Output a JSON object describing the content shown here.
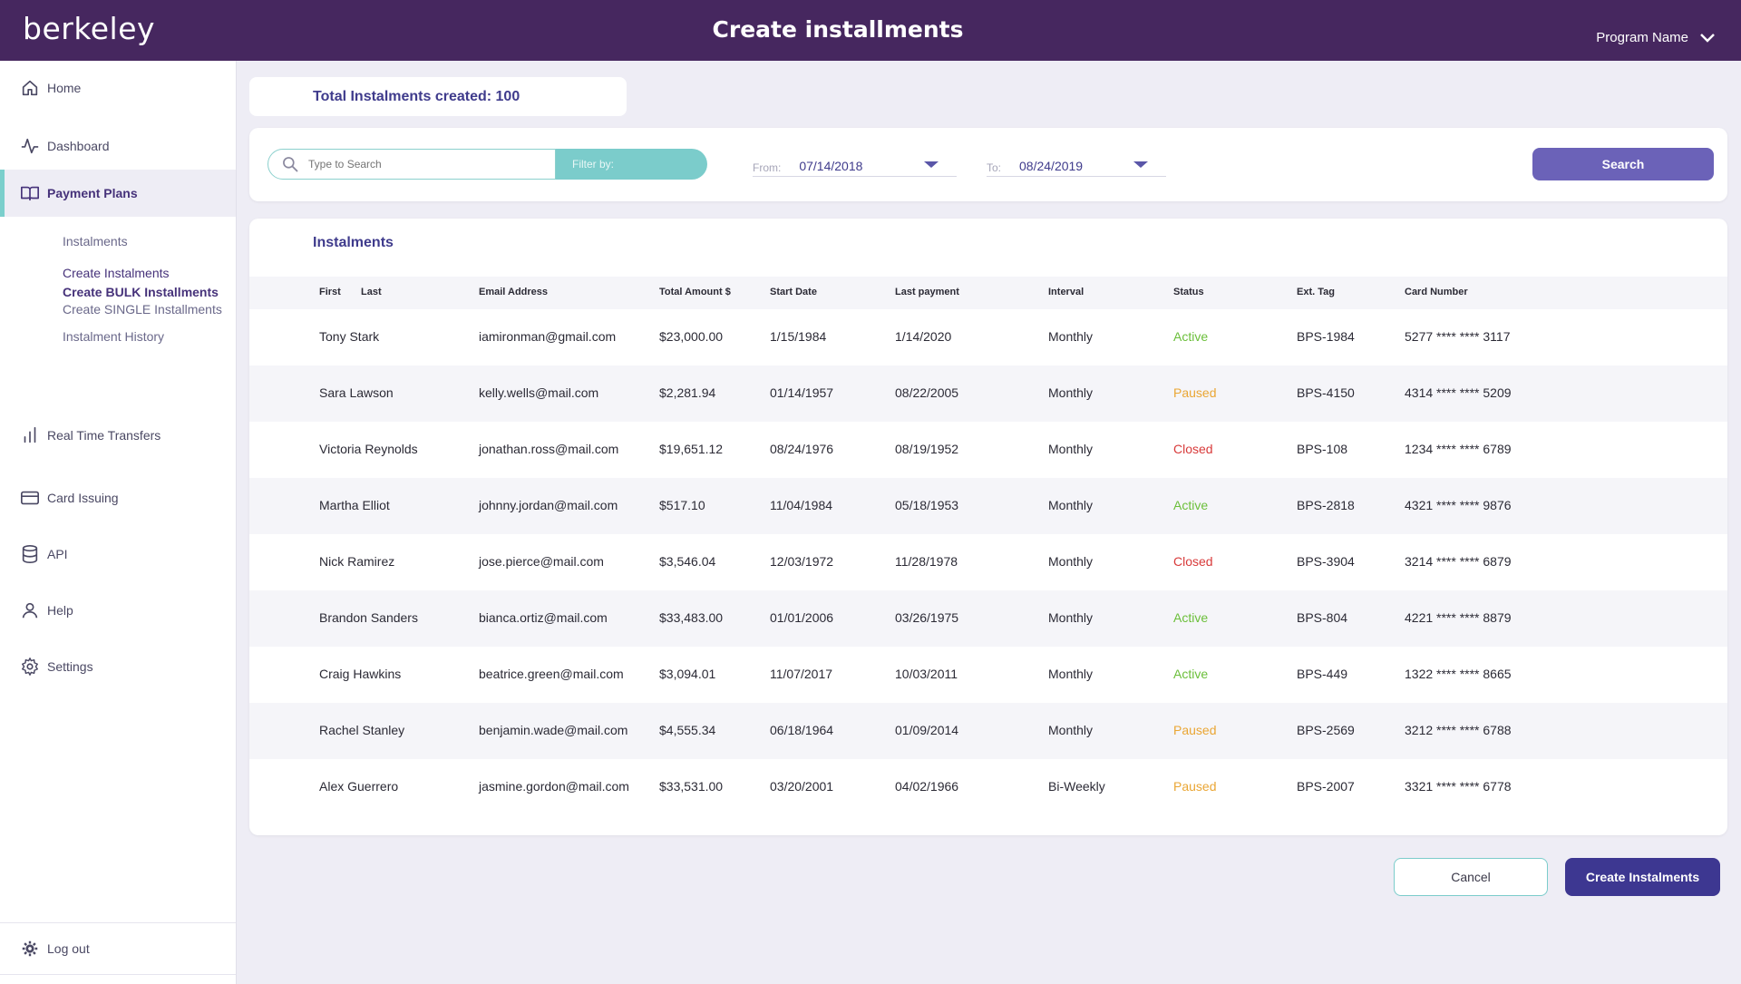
{
  "header": {
    "logo": "berkeley",
    "title": "Create installments",
    "program_label": "Program Name"
  },
  "sidebar": {
    "home": "Home",
    "dashboard": "Dashboard",
    "payment_plans": "Payment Plans",
    "sub": {
      "instalments": "Instalments",
      "create_instalments": "Create Instalments",
      "create_bulk": "Create BULK Installments",
      "create_single": "Create SINGLE Installments",
      "history": "Instalment History"
    },
    "real_time_transfers": "Real Time Transfers",
    "card_issuing": "Card Issuing",
    "api": "API",
    "help": "Help",
    "settings": "Settings",
    "logout": "Log out"
  },
  "summary": {
    "total_label": "Total Instalments created: 100"
  },
  "search": {
    "placeholder": "Type to Search",
    "filter_label": "Filter by:",
    "from_label": "From:",
    "from_value": "07/14/2018",
    "to_label": "To:",
    "to_value": "08/24/2019",
    "button": "Search"
  },
  "table": {
    "title": "Instalments",
    "headers": {
      "first": "First",
      "last": "Last",
      "email": "Email Address",
      "amount": "Total Amount $",
      "start": "Start Date",
      "last_payment": "Last payment",
      "interval": "Interval",
      "status": "Status",
      "tag": "Ext. Tag",
      "card": "Card Number"
    },
    "rows": [
      {
        "name": "Tony Stark",
        "email": "iamironman@gmail.com",
        "amount": "$23,000.00",
        "start": "1/15/1984",
        "last_payment": "1/14/2020",
        "interval": "Monthly",
        "status": "Active",
        "tag": "BPS-1984",
        "card": "5277 **** **** 3117"
      },
      {
        "name": "Sara Lawson",
        "email": "kelly.wells@mail.com",
        "amount": "$2,281.94",
        "start": "01/14/1957",
        "last_payment": "08/22/2005",
        "interval": "Monthly",
        "status": "Paused",
        "tag": "BPS-4150",
        "card": "4314 **** **** 5209"
      },
      {
        "name": "Victoria Reynolds",
        "email": "jonathan.ross@mail.com",
        "amount": "$19,651.12",
        "start": "08/24/1976",
        "last_payment": "08/19/1952",
        "interval": "Monthly",
        "status": "Closed",
        "tag": "BPS-108",
        "card": "1234 **** **** 6789"
      },
      {
        "name": "Martha Elliot",
        "email": "johnny.jordan@mail.com",
        "amount": "$517.10",
        "start": "11/04/1984",
        "last_payment": "05/18/1953",
        "interval": "Monthly",
        "status": "Active",
        "tag": "BPS-2818",
        "card": "4321 **** **** 9876"
      },
      {
        "name": "Nick Ramirez",
        "email": "jose.pierce@mail.com",
        "amount": "$3,546.04",
        "start": "12/03/1972",
        "last_payment": "11/28/1978",
        "interval": "Monthly",
        "status": "Closed",
        "tag": "BPS-3904",
        "card": "3214 **** **** 6879"
      },
      {
        "name": "Brandon Sanders",
        "email": "bianca.ortiz@mail.com",
        "amount": "$33,483.00",
        "start": "01/01/2006",
        "last_payment": "03/26/1975",
        "interval": "Monthly",
        "status": "Active",
        "tag": "BPS-804",
        "card": "4221 **** **** 8879"
      },
      {
        "name": "Craig Hawkins",
        "email": "beatrice.green@mail.com",
        "amount": "$3,094.01",
        "start": "11/07/2017",
        "last_payment": "10/03/2011",
        "interval": "Monthly",
        "status": "Active",
        "tag": "BPS-449",
        "card": "1322 **** **** 8665"
      },
      {
        "name": "Rachel Stanley",
        "email": "benjamin.wade@mail.com",
        "amount": "$4,555.34",
        "start": "06/18/1964",
        "last_payment": "01/09/2014",
        "interval": "Monthly",
        "status": "Paused",
        "tag": "BPS-2569",
        "card": "3212 **** **** 6788"
      },
      {
        "name": "Alex Guerrero",
        "email": "jasmine.gordon@mail.com",
        "amount": "$33,531.00",
        "start": "03/20/2001",
        "last_payment": "04/02/1966",
        "interval": "Bi-Weekly",
        "status": "Paused",
        "tag": "BPS-2007",
        "card": "3321 **** **** 6778"
      }
    ]
  },
  "actions": {
    "cancel": "Cancel",
    "create": "Create Instalments"
  },
  "colors": {
    "header_bg": "#46275f",
    "accent": "#3d3791",
    "teal": "#7bcccb",
    "active": "#6bbf3a",
    "paused": "#eaa634",
    "closed": "#d83a3a"
  }
}
